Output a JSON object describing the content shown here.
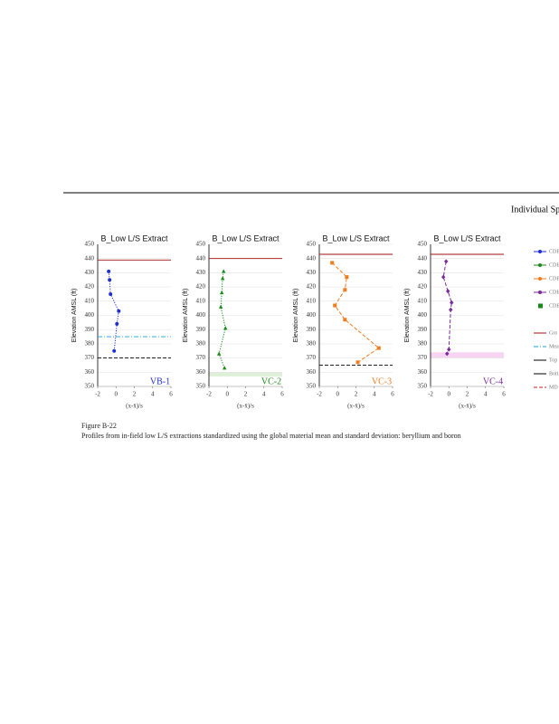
{
  "header": {
    "title": "Individual Sp"
  },
  "chart_data": [
    {
      "type": "line",
      "title": "B_Low L/S Extract",
      "y_label": "Elevation AMSL (ft)",
      "x_label": "(x-x̄)/s",
      "label": "VB-1",
      "xlim": [
        -2,
        6
      ],
      "xticks": [
        -2,
        0,
        2,
        4,
        6
      ],
      "ylim": [
        350,
        450
      ],
      "yticks": [
        350,
        360,
        370,
        380,
        390,
        400,
        410,
        420,
        430,
        440,
        450
      ],
      "series": [
        {
          "color": "#1f2fd0",
          "style": "dotted",
          "marker": "circle",
          "x": [
            -0.8,
            -0.7,
            -0.6,
            0.3,
            0.1,
            -0.2
          ],
          "values": [
            431,
            425,
            415,
            403,
            394,
            375
          ]
        }
      ],
      "reference_lines": [
        {
          "value": 439,
          "color": "#a01010",
          "style": "solid"
        },
        {
          "value": 385,
          "color": "#1aa0d8",
          "style": "dashdot"
        },
        {
          "value": 370,
          "color": "#000000",
          "style": "dashed"
        }
      ]
    },
    {
      "type": "line",
      "title": "B_Low L/S Extract",
      "y_label": "Elevation AMSL (ft)",
      "x_label": "(x-x̄)/s",
      "label": "VC-2",
      "xlim": [
        -2,
        6
      ],
      "xticks": [
        -2,
        0,
        2,
        4,
        6
      ],
      "ylim": [
        350,
        450
      ],
      "yticks": [
        350,
        360,
        370,
        380,
        390,
        400,
        410,
        420,
        430,
        440,
        450
      ],
      "series": [
        {
          "color": "#1a8a1a",
          "style": "dotted",
          "marker": "triangle",
          "x": [
            -0.4,
            -0.5,
            -0.6,
            -0.7,
            -0.2,
            -0.9,
            -0.3
          ],
          "values": [
            431,
            426,
            416,
            406,
            391,
            373,
            363
          ]
        }
      ],
      "reference_lines": [
        {
          "value": 440,
          "color": "#a01010",
          "style": "solid"
        }
      ],
      "band": {
        "color": "#dff0da",
        "range": [
          357,
          360
        ]
      }
    },
    {
      "type": "line",
      "title": "B_Low L/S Extract",
      "y_label": "Elevation AMSL (ft)",
      "x_label": "(x-x̄)/s",
      "label": "VC-3",
      "xlim": [
        -2,
        6
      ],
      "xticks": [
        -2,
        0,
        2,
        4,
        6
      ],
      "ylim": [
        350,
        450
      ],
      "yticks": [
        350,
        360,
        370,
        380,
        390,
        400,
        410,
        420,
        430,
        440,
        450
      ],
      "series": [
        {
          "color": "#f07c20",
          "style": "dashed",
          "marker": "square",
          "x": [
            -0.6,
            1,
            0.8,
            -0.3,
            0.8,
            4.5,
            2.2
          ],
          "values": [
            437,
            427,
            418,
            407,
            397,
            377,
            367
          ]
        }
      ],
      "reference_lines": [
        {
          "value": 443,
          "color": "#a01010",
          "style": "solid"
        },
        {
          "value": 365,
          "color": "#000000",
          "style": "dashed"
        }
      ]
    },
    {
      "type": "line",
      "title": "B_Low L/S Extract",
      "y_label": "Elevation AMSL (ft)",
      "x_label": "(x-x̄)/s",
      "label": "VC-4",
      "xlim": [
        -2,
        6
      ],
      "xticks": [
        -2,
        0,
        2,
        4,
        6
      ],
      "ylim": [
        350,
        450
      ],
      "yticks": [
        350,
        360,
        370,
        380,
        390,
        400,
        410,
        420,
        430,
        440,
        450
      ],
      "series": [
        {
          "color": "#7a2a9a",
          "style": "dashed",
          "marker": "diamond",
          "x": [
            -0.3,
            -0.6,
            -0.1,
            0.3,
            0.2,
            0,
            -0.2
          ],
          "values": [
            438,
            427,
            417,
            409,
            404,
            376,
            373
          ]
        }
      ],
      "reference_lines": [
        {
          "value": 443,
          "color": "#a01010",
          "style": "solid"
        }
      ],
      "band": {
        "color": "#f6d4f2",
        "range": [
          370,
          374
        ]
      }
    }
  ],
  "legend": [
    {
      "label": "CDB",
      "color": "#1f2fd0",
      "kind": "marker"
    },
    {
      "label": "CDB",
      "color": "#1a8a1a",
      "kind": "marker"
    },
    {
      "label": "CDB",
      "color": "#f07c20",
      "kind": "marker"
    },
    {
      "label": "CDB",
      "color": "#7a2a9a",
      "kind": "marker"
    },
    {
      "label": "CDB",
      "color": "#1a8a1a",
      "kind": "square"
    },
    {
      "label": "Gro",
      "color": "#a01010",
      "kind": "solid"
    },
    {
      "label": "Mea",
      "color": "#1aa0d8",
      "kind": "dashdot"
    },
    {
      "label": "Top",
      "color": "#000000",
      "kind": "solid"
    },
    {
      "label": "Bott",
      "color": "#000000",
      "kind": "solid"
    },
    {
      "label": "MD",
      "color": "#c02020",
      "kind": "dashed"
    }
  ],
  "caption": {
    "figure": "Figure B-22",
    "text": "Profiles from in-field low L/S extractions standardized using the global material mean and standard deviation: beryllium and boron"
  }
}
